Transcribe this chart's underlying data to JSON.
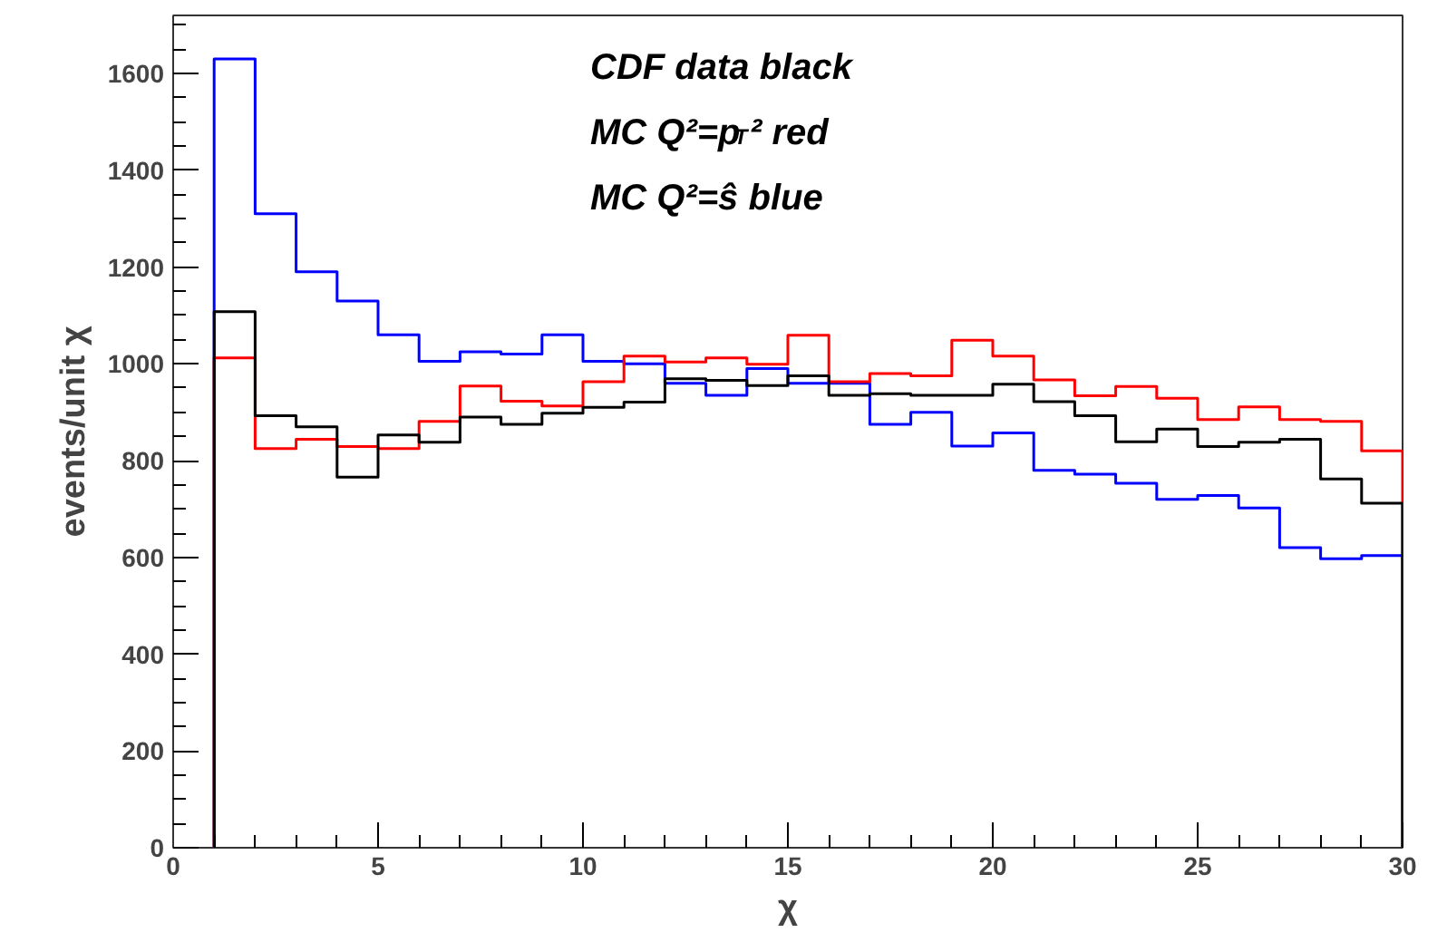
{
  "chart_data": {
    "type": "histogram",
    "xlabel": "χ",
    "ylabel": "events/unit χ",
    "bins": [
      1,
      2,
      3,
      4,
      5,
      6,
      7,
      8,
      9,
      10,
      11,
      12,
      13,
      14,
      15,
      16,
      17,
      18,
      19,
      20,
      21,
      22,
      23,
      24,
      25,
      26,
      27,
      28,
      29,
      30
    ],
    "series": [
      {
        "color": "#0000ff",
        "values": [
          1630,
          1310,
          1190,
          1130,
          1060,
          1005,
          1025,
          1020,
          1060,
          1005,
          1000,
          960,
          935,
          990,
          960,
          960,
          875,
          900,
          830,
          857,
          780,
          772,
          753,
          720,
          728,
          702,
          620,
          597,
          604
        ]
      },
      {
        "color": "#ff0000",
        "values": [
          1012,
          825,
          844,
          829,
          825,
          881,
          954,
          923,
          913,
          963,
          1016,
          1004,
          1012,
          999,
          1059,
          963,
          980,
          975,
          1049,
          1016,
          967,
          934,
          953,
          929,
          885,
          911,
          885,
          881,
          820
        ]
      },
      {
        "color": "#000000",
        "values": [
          1108,
          893,
          870,
          766,
          853,
          838,
          890,
          875,
          898,
          910,
          921,
          969,
          966,
          955,
          975,
          935,
          938,
          935,
          935,
          958,
          922,
          893,
          839,
          865,
          829,
          838,
          844,
          762,
          712
        ]
      }
    ],
    "xlim": [
      0,
      30
    ],
    "ylim": [
      0,
      1720
    ],
    "xticks": [
      0,
      5,
      10,
      15,
      20,
      25,
      30
    ],
    "yticks": [
      0,
      200,
      400,
      600,
      800,
      1000,
      1200,
      1400,
      1600
    ],
    "grid": false,
    "annotations": [
      "CDF data black",
      "MC Q²=p$_{T}$² red",
      "MC Q²=ŝ blue"
    ]
  }
}
